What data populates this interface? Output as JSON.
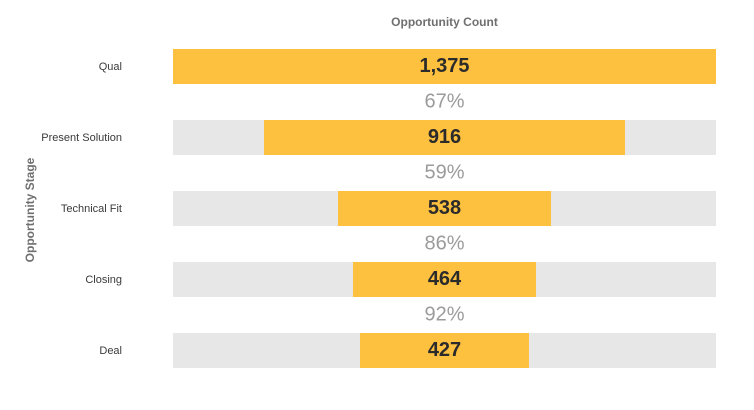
{
  "chart_data": {
    "type": "bar",
    "title": "Opportunity Count",
    "ylabel": "Opportunity Stage",
    "categories": [
      "Qual",
      "Present Solution",
      "Technical Fit",
      "Closing",
      "Deal"
    ],
    "values": [
      1375,
      916,
      538,
      464,
      427
    ],
    "value_labels": [
      "1,375",
      "916",
      "538",
      "464",
      "427"
    ],
    "conversion_labels": [
      "67%",
      "59%",
      "86%",
      "92%"
    ],
    "colors": {
      "bar": "#fdc03f",
      "track": "#e7e7e7",
      "conversion_text": "#9b9b9b"
    }
  }
}
